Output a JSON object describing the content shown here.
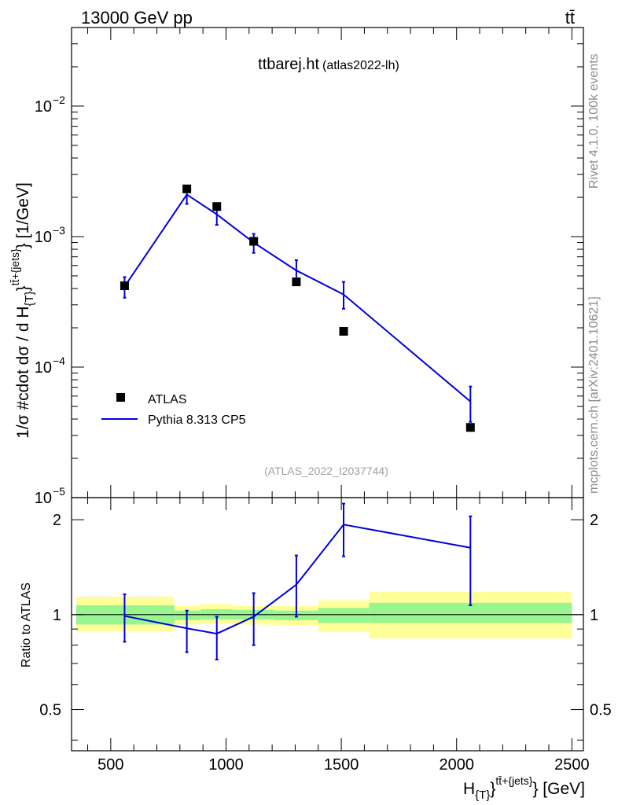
{
  "header": {
    "energy_label": "13000 GeV pp",
    "process_label": "tt̄"
  },
  "plot_title": {
    "name": "ttbarej.ht",
    "tag": "(atlas2022-lh)"
  },
  "analysis_ref": "(ATLAS_2022_I2037744)",
  "sidebar": {
    "rivet": "Rivet 4.1.0,  100k events",
    "site": "mcplots.cern.ch [arXiv:2401.10621]"
  },
  "colors": {
    "mc_line": "#0000dd",
    "data_marker": "#000000",
    "band_inner": "#99f58f",
    "band_outer": "#ffff99"
  },
  "chart_data": [
    {
      "type": "scatter",
      "scale": "log",
      "ylabel": "1/σ #cdot dσ / d H_{T}^{tt̄+{jets}} [1/GeV]",
      "xlim": [
        330,
        2550
      ],
      "ylim": [
        1e-05,
        0.04
      ],
      "yticks": [
        {
          "value": 1e-05,
          "base": "10",
          "exp": "−5"
        },
        {
          "value": 0.0001,
          "base": "10",
          "exp": "−4"
        },
        {
          "value": 0.001,
          "base": "10",
          "exp": "−3"
        },
        {
          "value": 0.01,
          "base": "10",
          "exp": "−2"
        }
      ],
      "series": [
        {
          "name": "ATLAS",
          "kind": "data",
          "x": [
            560,
            830,
            960,
            1120,
            1305,
            1510,
            2060
          ],
          "y": [
            0.00042,
            0.00232,
            0.0017,
            0.00092,
            0.00045,
            0.000188,
            3.45e-05
          ]
        },
        {
          "name": "Pythia 8.313 CP5",
          "kind": "mc",
          "x": [
            560,
            830,
            960,
            1120,
            1305,
            1510,
            2060
          ],
          "y": [
            0.000415,
            0.0021,
            0.00148,
            0.0009,
            0.00055,
            0.00036,
            5.45e-05
          ],
          "err_low": [
            0.00034,
            0.00178,
            0.00123,
            0.00075,
            0.00044,
            0.00028,
            3.8e-05
          ],
          "err_high": [
            0.00049,
            0.00242,
            0.00173,
            0.00105,
            0.00066,
            0.00045,
            7.1e-05
          ]
        }
      ]
    },
    {
      "type": "line",
      "ylabel": "Ratio to ATLAS",
      "xlabel": "H_{T}^{tt̄+{jets}} [GeV]",
      "xlim": [
        330,
        2550
      ],
      "ylim": [
        0.37,
        2.35
      ],
      "xticks": [
        "500",
        "1000",
        "1500",
        "2000",
        "2500"
      ],
      "xtick_values": [
        500,
        1000,
        1500,
        2000,
        2500
      ],
      "yticks": [
        "0.5",
        "1",
        "2"
      ],
      "ytick_values": [
        0.5,
        1,
        2
      ],
      "bands": [
        {
          "x0": 350,
          "x1": 775,
          "inner": [
            0.93,
            1.07
          ],
          "outer": [
            0.885,
            1.14
          ]
        },
        {
          "x0": 775,
          "x1": 890,
          "inner": [
            0.96,
            1.03
          ],
          "outer": [
            0.93,
            1.065
          ]
        },
        {
          "x0": 890,
          "x1": 1030,
          "inner": [
            0.965,
            1.04
          ],
          "outer": [
            0.935,
            1.08
          ]
        },
        {
          "x0": 1030,
          "x1": 1210,
          "inner": [
            0.965,
            1.035
          ],
          "outer": [
            0.93,
            1.065
          ]
        },
        {
          "x0": 1210,
          "x1": 1400,
          "inner": [
            0.96,
            1.03
          ],
          "outer": [
            0.925,
            1.065
          ]
        },
        {
          "x0": 1400,
          "x1": 1620,
          "inner": [
            0.94,
            1.05
          ],
          "outer": [
            0.88,
            1.11
          ]
        },
        {
          "x0": 1620,
          "x1": 2500,
          "inner": [
            0.94,
            1.09
          ],
          "outer": [
            0.84,
            1.18
          ]
        }
      ],
      "series": [
        {
          "name": "Pythia 8.313 CP5 / ATLAS",
          "x": [
            560,
            830,
            960,
            1120,
            1305,
            1510,
            2060
          ],
          "y": [
            0.99,
            0.905,
            0.87,
            0.985,
            1.245,
            1.93,
            1.63
          ],
          "err_low": [
            0.82,
            0.76,
            0.72,
            0.8,
            0.985,
            1.53,
            1.07
          ],
          "err_high": [
            1.16,
            1.03,
            0.985,
            1.17,
            1.54,
            2.25,
            2.05
          ]
        }
      ]
    }
  ]
}
